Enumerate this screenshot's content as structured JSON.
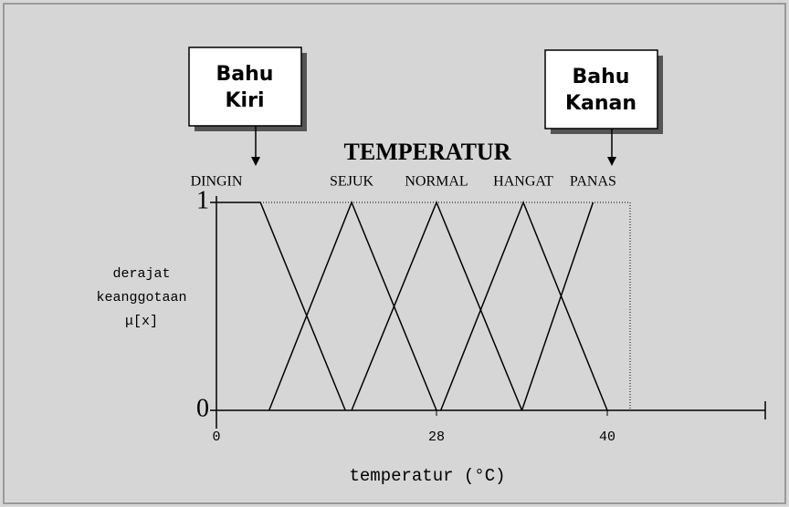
{
  "chart_data": {
    "type": "line",
    "title": "TEMPERATUR",
    "x_label": "temperatur (°C)",
    "y_label": [
      "derajat",
      "keanggotaan",
      "μ[x]"
    ],
    "annotations": [
      {
        "lines": [
          "Bahu",
          "Kiri"
        ]
      },
      {
        "lines": [
          "Bahu",
          "Kanan"
        ]
      }
    ],
    "xlim": [
      0,
      51
    ],
    "xticks": [
      0,
      28,
      40
    ],
    "ylim": [
      0,
      1
    ],
    "yticks": [
      0,
      1
    ],
    "series": [
      {
        "name": "DINGIN",
        "color": "#000000",
        "x": [
          0,
          5.6,
          16.4
        ],
        "values": [
          1,
          1,
          0
        ]
      },
      {
        "name": "SEJUK",
        "color": "#000000",
        "x": [
          6.7,
          17.2,
          28
        ],
        "values": [
          0,
          1,
          0
        ]
      },
      {
        "name": "NORMAL",
        "color": "#000000",
        "x": [
          17.2,
          28,
          34
        ],
        "values": [
          0,
          1,
          0
        ]
      },
      {
        "name": "HANGAT",
        "color": "#000000",
        "x": [
          28.3,
          34.1,
          40
        ],
        "values": [
          0,
          1,
          0
        ]
      },
      {
        "name": "PANAS",
        "color": "#000000",
        "x": [
          34,
          39
        ],
        "values": [
          0,
          1
        ]
      }
    ]
  }
}
